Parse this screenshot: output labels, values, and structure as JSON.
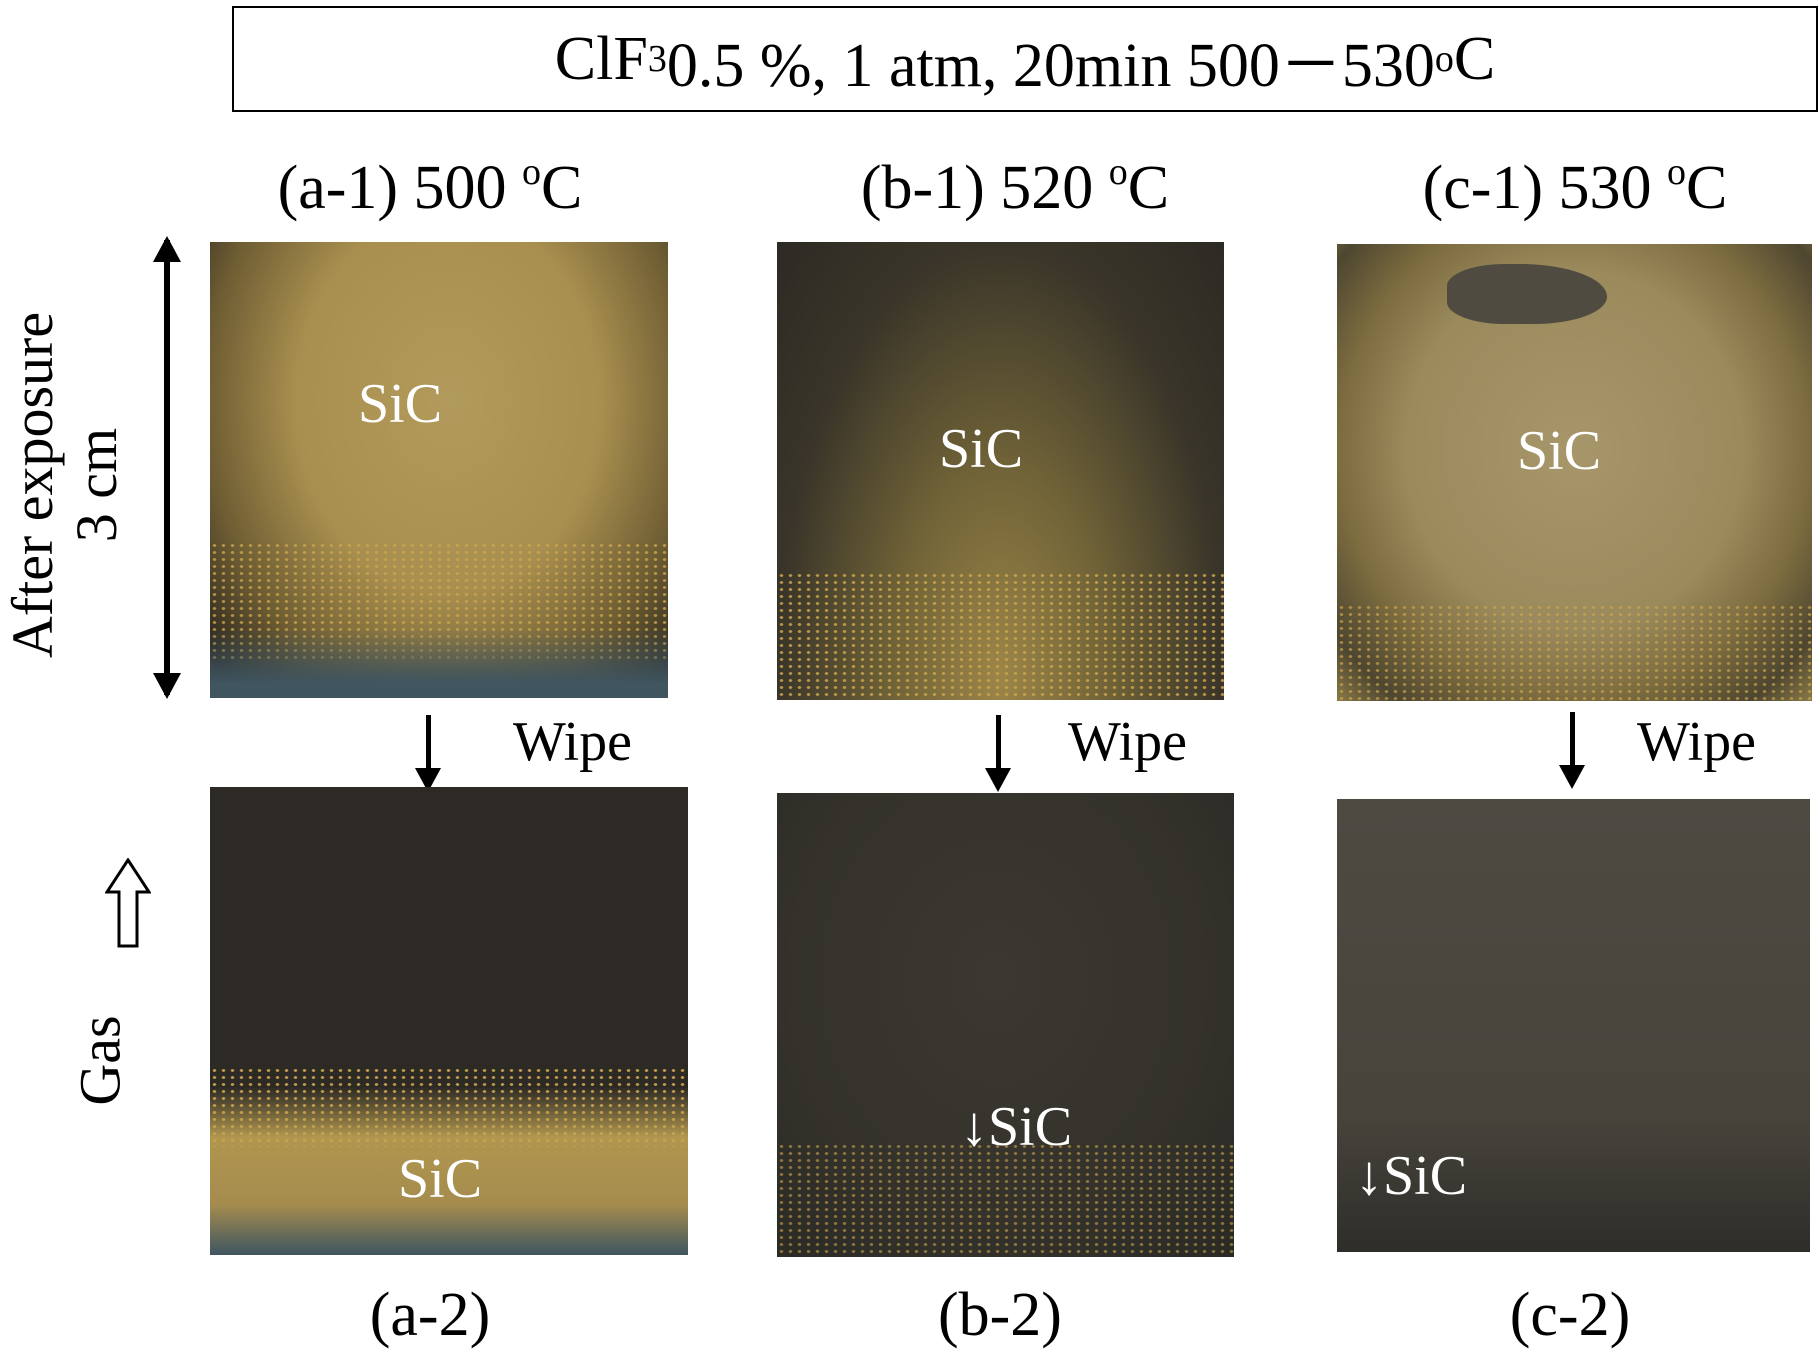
{
  "title": {
    "prefix": "ClF",
    "sub": "3",
    "middle": " 0.5 %, 1 atm, 20min 500－530 ",
    "deg": "o",
    "unit": "C"
  },
  "side_labels": {
    "after_exposure": "After exposure",
    "scale": "3 cm",
    "gas": "Gas"
  },
  "columns": [
    {
      "top_label_prefix": "(a-1) 500 ",
      "deg": "o",
      "unit": "C",
      "top_sample_text": "SiC",
      "wipe_label": "Wipe",
      "bottom_sample_text": "SiC",
      "bottom_label": "(a-2)"
    },
    {
      "top_label_prefix": "(b-1) 520 ",
      "deg": "o",
      "unit": "C",
      "top_sample_text": "SiC",
      "wipe_label": "Wipe",
      "bottom_sample_text": "↓SiC",
      "bottom_label": "(b-2)"
    },
    {
      "top_label_prefix": "(c-1) 530 ",
      "deg": "o",
      "unit": "C",
      "top_sample_text": "SiC",
      "wipe_label": "Wipe",
      "bottom_sample_text": "↓SiC",
      "bottom_label": "(c-2)"
    }
  ],
  "colors": {
    "sic_gold": "#b89a4e",
    "dark_film": "#2f2c27",
    "gray_film": "#4d4a42",
    "blue_tint": "#3f5560"
  }
}
